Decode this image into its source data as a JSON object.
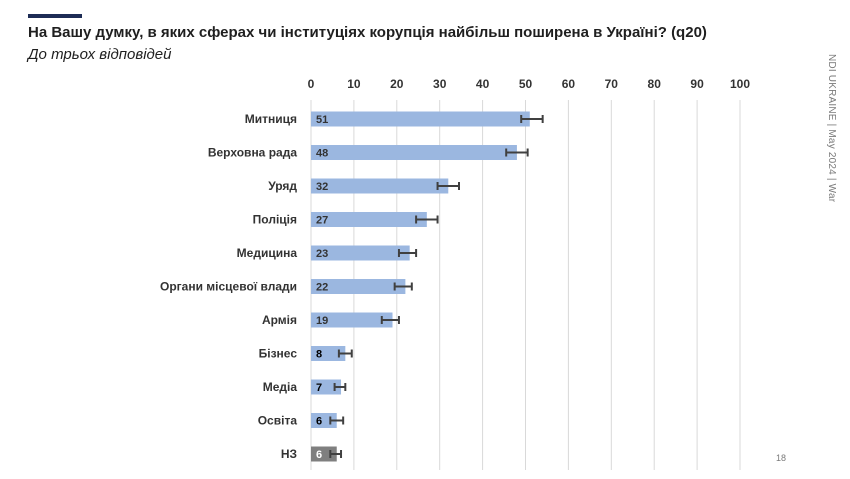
{
  "header": {
    "title": "На Вашу думку, в яких сферах чи інституціях корупція найбільш поширена в Україні? (q20)",
    "subtitle": "До трьох відповідей"
  },
  "side_label": "NDI UKRAINE | May 2024 | War",
  "page_number": "18",
  "colors": {
    "bar": "#9bb7e0",
    "bar_na": "#7f7f7f",
    "grid": "#d9d9d9",
    "error": "#404040",
    "rule": "#1d2c55"
  },
  "chart_data": {
    "type": "bar",
    "orientation": "horizontal",
    "title": "На Вашу думку, в яких сферах чи інституціях корупція найбільш поширена в Україні? (q20)",
    "xlim": [
      0,
      100
    ],
    "xticks": [
      0,
      10,
      20,
      30,
      40,
      50,
      60,
      70,
      80,
      90,
      100
    ],
    "grid": true,
    "categories": [
      "Митниця",
      "Верховна рада",
      "Уряд",
      "Поліція",
      "Медицина",
      "Органи місцевої влади",
      "Армія",
      "Бізнес",
      "Медіа",
      "Освіта",
      "НЗ"
    ],
    "values": [
      51,
      48,
      32,
      27,
      23,
      22,
      19,
      8,
      7,
      6,
      6
    ],
    "value_labels": [
      "51",
      "48",
      "32",
      "27",
      "23",
      "22",
      "19",
      "8",
      "7",
      "6",
      "6"
    ],
    "error_low": [
      49,
      45.5,
      29.5,
      24.5,
      20.5,
      19.5,
      16.5,
      6.5,
      5.5,
      4.5,
      4.5
    ],
    "error_high": [
      54,
      50.5,
      34.5,
      29.5,
      24.5,
      23.5,
      20.5,
      9.5,
      8,
      7.5,
      7
    ]
  }
}
